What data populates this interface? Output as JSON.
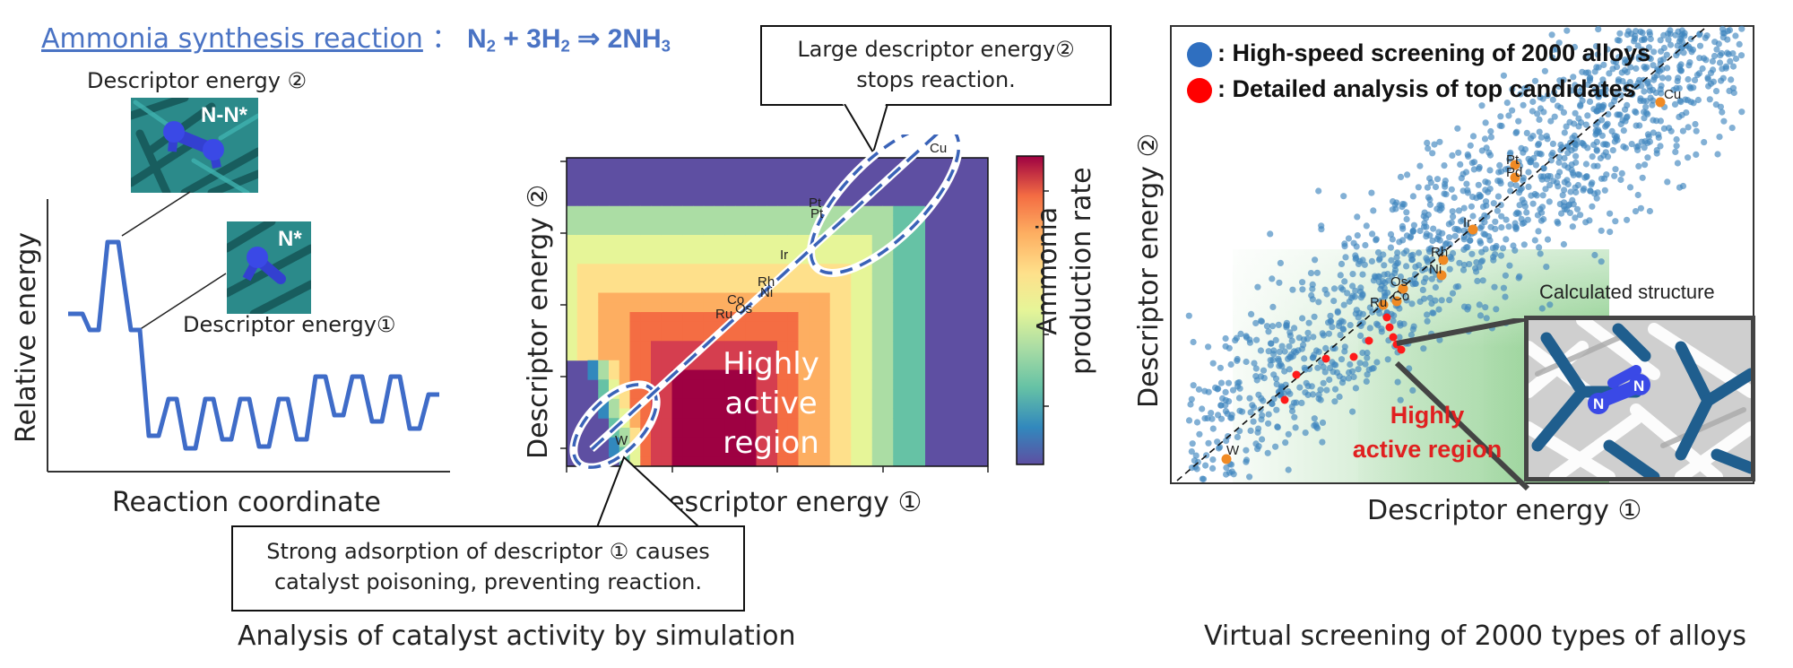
{
  "header": {
    "title_link": "Ammonia synthesis reaction",
    "title_sep": "：",
    "equation": {
      "n2": "N",
      "n2_sub": "2",
      "plus": " + 3H",
      "h2_sub": "2",
      "arrow": " ⇒ ",
      "product": "2NH",
      "nh3_sub": "3"
    }
  },
  "left_panel": {
    "descriptor2_label": "Descriptor energy ②",
    "descriptor1_label": "Descriptor energy①",
    "structure_nn_label": "N-N*",
    "structure_n_label": "N*",
    "ylabel": "Relative energy",
    "xlabel": "Reaction coordinate"
  },
  "middle_panel": {
    "callout_top": [
      "Large descriptor energy②",
      "stops reaction."
    ],
    "callout_bottom": [
      "Strong adsorption of descriptor ① causes",
      "catalyst poisoning, preventing reaction."
    ],
    "ylabel": "Descriptor energy ②",
    "xlabel": "Descriptor energy ①",
    "colorbar_label": [
      "Ammonia",
      "production rate"
    ],
    "active_region": [
      "Highly",
      "active",
      "region"
    ],
    "element_labels": [
      "Cu",
      "Pt",
      "Pt",
      "Co",
      "Rh",
      "Ru",
      "Os",
      "Ni",
      "Ir",
      "W"
    ],
    "caption": "Analysis of catalyst activity by simulation"
  },
  "right_panel": {
    "legend": [
      {
        "label": ": High-speed screening of 2000 alloys",
        "color": "#2f6fc0"
      },
      {
        "label": ": Detailed analysis of top candidates",
        "color": "#ff0000"
      }
    ],
    "ylabel": "Descriptor energy ②",
    "xlabel": "Descriptor energy ①",
    "structure_label": "Calculated structure",
    "structure_atoms": [
      "N",
      "N"
    ],
    "active_region": [
      "Highly",
      "active region"
    ],
    "element_labels": [
      "Cu",
      "Pt",
      "Pd",
      "Ir",
      "Rh",
      "Ni",
      "Os",
      "Ru",
      "Co",
      "W"
    ],
    "caption": "Virtual screening of 2000 types of alloys"
  }
}
